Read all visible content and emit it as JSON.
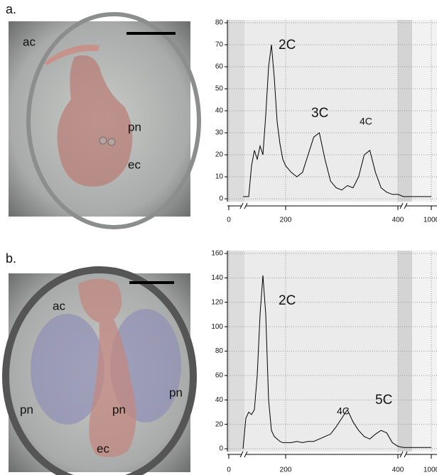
{
  "figure": {
    "panels": [
      "a.",
      "b."
    ],
    "image_labels": [
      [
        "ac",
        "pn",
        "ec"
      ],
      [
        "ac",
        "pn",
        "pn",
        "pn",
        "ec"
      ]
    ]
  },
  "chart_data": [
    {
      "type": "line",
      "annotations": [
        "2C",
        "3C",
        "4C"
      ],
      "x": [
        50,
        60,
        70,
        80,
        90,
        100,
        110,
        120,
        130,
        140,
        150,
        160,
        170,
        180,
        190,
        200,
        210,
        220,
        230,
        240,
        250,
        260,
        270,
        280,
        290,
        300,
        310,
        320,
        330,
        340,
        350,
        360,
        370,
        380,
        390,
        400,
        500,
        700,
        1000
      ],
      "values": [
        1,
        1,
        1,
        15,
        22,
        18,
        24,
        20,
        38,
        60,
        70,
        55,
        35,
        25,
        18,
        15,
        12,
        10,
        12,
        20,
        28,
        30,
        18,
        8,
        5,
        4,
        6,
        5,
        10,
        20,
        22,
        12,
        5,
        3,
        2,
        2,
        1,
        1,
        1
      ],
      "color": "#000000",
      "ylim": [
        0,
        80
      ],
      "yticks": [
        0,
        10,
        20,
        30,
        40,
        50,
        60,
        70,
        80
      ],
      "xticks": [
        0,
        200,
        400,
        1000
      ],
      "grid": true
    },
    {
      "type": "line",
      "annotations": [
        "2C",
        "4C",
        "5C"
      ],
      "x": [
        50,
        60,
        70,
        80,
        90,
        100,
        110,
        120,
        130,
        140,
        150,
        160,
        170,
        180,
        190,
        200,
        210,
        220,
        230,
        240,
        250,
        260,
        270,
        280,
        290,
        300,
        310,
        320,
        330,
        340,
        350,
        360,
        370,
        380,
        390,
        400,
        500,
        700,
        1000
      ],
      "values": [
        0,
        25,
        30,
        28,
        32,
        60,
        110,
        142,
        110,
        40,
        15,
        10,
        8,
        6,
        5,
        5,
        5,
        6,
        5,
        6,
        6,
        8,
        10,
        12,
        18,
        25,
        32,
        22,
        15,
        10,
        8,
        12,
        15,
        13,
        5,
        2,
        1,
        1,
        1
      ],
      "color": "#000000",
      "ylim": [
        0,
        160
      ],
      "yticks": [
        0,
        20,
        40,
        60,
        80,
        100,
        120,
        140,
        160
      ],
      "xticks": [
        0,
        200,
        400,
        1000
      ],
      "grid": true
    }
  ]
}
